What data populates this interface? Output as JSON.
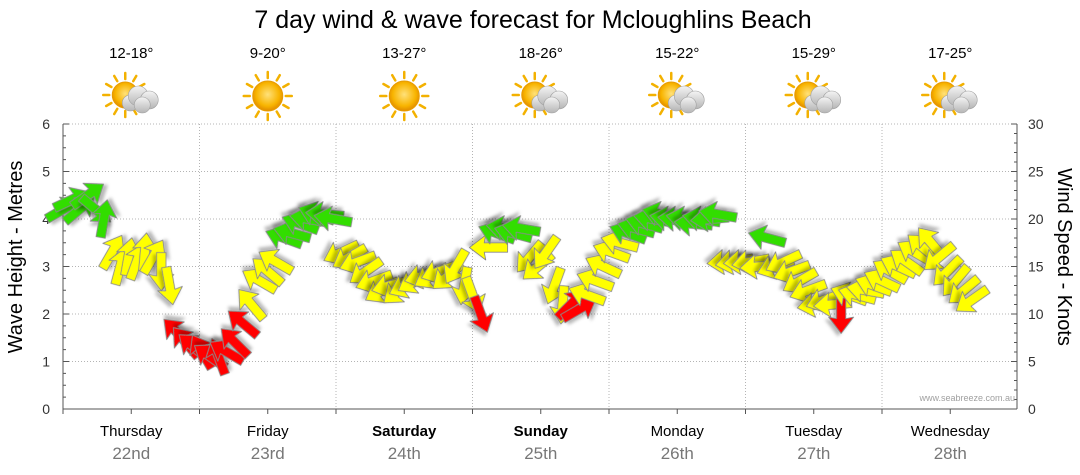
{
  "chart_data": {
    "type": "forecast-arrows",
    "title": "7 day wind & wave forecast for Mcloughlins Beach",
    "left_axis": {
      "label": "Wave Height - Metres",
      "min": 0,
      "max": 6,
      "ticks": [
        "0",
        "1",
        "2",
        "3",
        "4",
        "5",
        "6"
      ]
    },
    "right_axis": {
      "label": "Wind Speed - Knots",
      "min": 0,
      "max": 30,
      "ticks": [
        "0",
        "5",
        "10",
        "15",
        "20",
        "25",
        "30"
      ]
    },
    "days": [
      {
        "name": "Thursday",
        "date": "22nd",
        "temp": "12-18°",
        "weather": "partly-cloudy",
        "bold": false
      },
      {
        "name": "Friday",
        "date": "23rd",
        "temp": "9-20°",
        "weather": "sunny",
        "bold": false
      },
      {
        "name": "Saturday",
        "date": "24th",
        "temp": "13-27°",
        "weather": "sunny",
        "bold": true
      },
      {
        "name": "Sunday",
        "date": "25th",
        "temp": "18-26°",
        "weather": "partly-cloudy",
        "bold": true
      },
      {
        "name": "Monday",
        "date": "26th",
        "temp": "15-22°",
        "weather": "partly-cloudy",
        "bold": false
      },
      {
        "name": "Tuesday",
        "date": "27th",
        "temp": "15-29°",
        "weather": "partly-cloudy",
        "bold": false
      },
      {
        "name": "Wednesday",
        "date": "28th",
        "temp": "17-25°",
        "weather": "partly-cloudy",
        "bold": false
      }
    ],
    "grid": true,
    "colors": {
      "red": "#ff0000",
      "yellow": "#ffff00",
      "green": "#33dd00",
      "stroke": "#888888"
    },
    "wind_series": [
      {
        "day": 0.0,
        "knots": 21.0,
        "dir": -30,
        "level": "green"
      },
      {
        "day": 0.06,
        "knots": 22.0,
        "dir": -25,
        "level": "green"
      },
      {
        "day": 0.12,
        "knots": 21.0,
        "dir": -40,
        "level": "green"
      },
      {
        "day": 0.18,
        "knots": 22.5,
        "dir": -35,
        "level": "green"
      },
      {
        "day": 0.24,
        "knots": 21.0,
        "dir": 40,
        "level": "green"
      },
      {
        "day": 0.3,
        "knots": 20.0,
        "dir": -80,
        "level": "green"
      },
      {
        "day": 0.36,
        "knots": 16.5,
        "dir": -60,
        "level": "yellow"
      },
      {
        "day": 0.42,
        "knots": 15.0,
        "dir": -75,
        "level": "yellow"
      },
      {
        "day": 0.48,
        "knots": 16.0,
        "dir": -80,
        "level": "yellow"
      },
      {
        "day": 0.54,
        "knots": 15.5,
        "dir": -70,
        "level": "yellow"
      },
      {
        "day": 0.6,
        "knots": 16.5,
        "dir": -85,
        "level": "yellow"
      },
      {
        "day": 0.66,
        "knots": 16.0,
        "dir": -60,
        "level": "yellow"
      },
      {
        "day": 0.72,
        "knots": 14.5,
        "dir": 90,
        "level": "yellow"
      },
      {
        "day": 0.78,
        "knots": 13.0,
        "dir": 80,
        "level": "yellow"
      },
      {
        "day": 0.84,
        "knots": 8.0,
        "dir": -135,
        "level": "red"
      },
      {
        "day": 0.9,
        "knots": 7.0,
        "dir": -130,
        "level": "red"
      },
      {
        "day": 0.96,
        "knots": 6.5,
        "dir": -140,
        "level": "red"
      },
      {
        "day": 1.02,
        "knots": 6.0,
        "dir": -120,
        "level": "red"
      },
      {
        "day": 1.08,
        "knots": 5.5,
        "dir": -145,
        "level": "red"
      },
      {
        "day": 1.14,
        "knots": 5.5,
        "dir": -110,
        "level": "red"
      },
      {
        "day": 1.2,
        "knots": 6.0,
        "dir": -150,
        "level": "red"
      },
      {
        "day": 1.26,
        "knots": 7.0,
        "dir": -135,
        "level": "red"
      },
      {
        "day": 1.32,
        "knots": 9.0,
        "dir": -140,
        "level": "red"
      },
      {
        "day": 1.38,
        "knots": 11.0,
        "dir": -130,
        "level": "yellow"
      },
      {
        "day": 1.44,
        "knots": 13.5,
        "dir": -150,
        "level": "yellow"
      },
      {
        "day": 1.5,
        "knots": 14.5,
        "dir": -140,
        "level": "yellow"
      },
      {
        "day": 1.56,
        "knots": 15.5,
        "dir": -150,
        "level": "yellow"
      },
      {
        "day": 1.62,
        "knots": 18.0,
        "dir": -160,
        "level": "green"
      },
      {
        "day": 1.68,
        "knots": 18.5,
        "dir": -165,
        "level": "green"
      },
      {
        "day": 1.74,
        "knots": 19.5,
        "dir": -160,
        "level": "green"
      },
      {
        "day": 1.8,
        "knots": 20.0,
        "dir": -170,
        "level": "green"
      },
      {
        "day": 1.86,
        "knots": 20.5,
        "dir": -160,
        "level": "green"
      },
      {
        "day": 1.92,
        "knots": 20.5,
        "dir": -175,
        "level": "green"
      },
      {
        "day": 1.98,
        "knots": 20.0,
        "dir": -170,
        "level": "green"
      },
      {
        "day": 2.04,
        "knots": 16.5,
        "dir": 155,
        "level": "yellow"
      },
      {
        "day": 2.1,
        "knots": 16.0,
        "dir": 150,
        "level": "yellow"
      },
      {
        "day": 2.16,
        "knots": 15.5,
        "dir": 160,
        "level": "yellow"
      },
      {
        "day": 2.22,
        "knots": 14.5,
        "dir": 145,
        "level": "yellow"
      },
      {
        "day": 2.28,
        "knots": 13.5,
        "dir": 160,
        "level": "yellow"
      },
      {
        "day": 2.34,
        "knots": 12.5,
        "dir": 150,
        "level": "yellow"
      },
      {
        "day": 2.4,
        "knots": 13.0,
        "dir": 165,
        "level": "yellow"
      },
      {
        "day": 2.46,
        "knots": 12.5,
        "dir": 140,
        "level": "yellow"
      },
      {
        "day": 2.52,
        "knots": 13.0,
        "dir": 155,
        "level": "yellow"
      },
      {
        "day": 2.58,
        "knots": 13.5,
        "dir": 150,
        "level": "yellow"
      },
      {
        "day": 2.64,
        "knots": 14.0,
        "dir": 165,
        "level": "yellow"
      },
      {
        "day": 2.7,
        "knots": 14.0,
        "dir": 150,
        "level": "yellow"
      },
      {
        "day": 2.76,
        "knots": 14.5,
        "dir": 160,
        "level": "yellow"
      },
      {
        "day": 2.82,
        "knots": 14.0,
        "dir": 140,
        "level": "yellow"
      },
      {
        "day": 2.88,
        "knots": 15.0,
        "dir": 120,
        "level": "yellow"
      },
      {
        "day": 2.94,
        "knots": 13.0,
        "dir": 100,
        "level": "yellow"
      },
      {
        "day": 3.0,
        "knots": 12.0,
        "dir": 70,
        "level": "yellow"
      },
      {
        "day": 3.06,
        "knots": 10.0,
        "dir": 70,
        "level": "red"
      },
      {
        "day": 3.12,
        "knots": 17.0,
        "dir": -180,
        "level": "yellow"
      },
      {
        "day": 3.18,
        "knots": 18.5,
        "dir": -160,
        "level": "green"
      },
      {
        "day": 3.24,
        "knots": 19.0,
        "dir": -170,
        "level": "green"
      },
      {
        "day": 3.3,
        "knots": 18.5,
        "dir": -165,
        "level": "green"
      },
      {
        "day": 3.36,
        "knots": 19.0,
        "dir": -170,
        "level": "green"
      },
      {
        "day": 3.42,
        "knots": 16.0,
        "dir": 130,
        "level": "yellow"
      },
      {
        "day": 3.48,
        "knots": 15.0,
        "dir": 140,
        "level": "yellow"
      },
      {
        "day": 3.54,
        "knots": 16.5,
        "dir": 125,
        "level": "yellow"
      },
      {
        "day": 3.6,
        "knots": 13.0,
        "dir": 110,
        "level": "yellow"
      },
      {
        "day": 3.66,
        "knots": 11.0,
        "dir": 95,
        "level": "yellow"
      },
      {
        "day": 3.72,
        "knots": 11.0,
        "dir": -45,
        "level": "red"
      },
      {
        "day": 3.78,
        "knots": 10.5,
        "dir": -30,
        "level": "red"
      },
      {
        "day": 3.84,
        "knots": 12.0,
        "dir": -160,
        "level": "yellow"
      },
      {
        "day": 3.9,
        "knots": 13.5,
        "dir": -160,
        "level": "yellow"
      },
      {
        "day": 3.96,
        "knots": 15.0,
        "dir": -155,
        "level": "yellow"
      },
      {
        "day": 4.02,
        "knots": 16.5,
        "dir": -160,
        "level": "yellow"
      },
      {
        "day": 4.08,
        "knots": 17.5,
        "dir": -165,
        "level": "yellow"
      },
      {
        "day": 4.14,
        "knots": 18.5,
        "dir": -160,
        "level": "green"
      },
      {
        "day": 4.2,
        "knots": 19.0,
        "dir": -165,
        "level": "green"
      },
      {
        "day": 4.26,
        "knots": 19.5,
        "dir": -165,
        "level": "green"
      },
      {
        "day": 4.32,
        "knots": 20.0,
        "dir": -170,
        "level": "green"
      },
      {
        "day": 4.38,
        "knots": 20.5,
        "dir": -165,
        "level": "green"
      },
      {
        "day": 4.44,
        "knots": 20.0,
        "dir": -170,
        "level": "green"
      },
      {
        "day": 4.5,
        "knots": 20.0,
        "dir": -175,
        "level": "green"
      },
      {
        "day": 4.56,
        "knots": 20.0,
        "dir": -170,
        "level": "green"
      },
      {
        "day": 4.62,
        "knots": 19.5,
        "dir": -175,
        "level": "green"
      },
      {
        "day": 4.68,
        "knots": 20.0,
        "dir": -170,
        "level": "green"
      },
      {
        "day": 4.74,
        "knots": 20.0,
        "dir": 175,
        "level": "green"
      },
      {
        "day": 4.8,
        "knots": 20.5,
        "dir": -170,
        "level": "green"
      },
      {
        "day": 4.86,
        "knots": 15.5,
        "dir": 175,
        "level": "yellow"
      },
      {
        "day": 4.92,
        "knots": 15.5,
        "dir": 170,
        "level": "yellow"
      },
      {
        "day": 4.98,
        "knots": 15.5,
        "dir": 175,
        "level": "yellow"
      },
      {
        "day": 5.04,
        "knots": 15.5,
        "dir": 170,
        "level": "yellow"
      },
      {
        "day": 5.1,
        "knots": 15.0,
        "dir": 175,
        "level": "yellow"
      },
      {
        "day": 5.16,
        "knots": 18.0,
        "dir": -165,
        "level": "green"
      },
      {
        "day": 5.22,
        "knots": 15.0,
        "dir": 160,
        "level": "yellow"
      },
      {
        "day": 5.28,
        "knots": 15.5,
        "dir": 155,
        "level": "yellow"
      },
      {
        "day": 5.34,
        "knots": 14.5,
        "dir": 160,
        "level": "yellow"
      },
      {
        "day": 5.4,
        "knots": 13.5,
        "dir": 150,
        "level": "yellow"
      },
      {
        "day": 5.46,
        "knots": 12.5,
        "dir": 160,
        "level": "yellow"
      },
      {
        "day": 5.52,
        "knots": 11.0,
        "dir": 170,
        "level": "yellow"
      },
      {
        "day": 5.58,
        "knots": 11.5,
        "dir": 160,
        "level": "yellow"
      },
      {
        "day": 5.64,
        "knots": 11.0,
        "dir": 175,
        "level": "yellow"
      },
      {
        "day": 5.7,
        "knots": 10.0,
        "dir": 90,
        "level": "red"
      },
      {
        "day": 5.76,
        "knots": 12.0,
        "dir": -160,
        "level": "yellow"
      },
      {
        "day": 5.82,
        "knots": 12.0,
        "dir": -165,
        "level": "yellow"
      },
      {
        "day": 5.88,
        "knots": 12.5,
        "dir": -170,
        "level": "yellow"
      },
      {
        "day": 5.94,
        "knots": 13.0,
        "dir": -160,
        "level": "yellow"
      },
      {
        "day": 6.0,
        "knots": 13.5,
        "dir": -155,
        "level": "yellow"
      },
      {
        "day": 6.06,
        "knots": 14.5,
        "dir": -150,
        "level": "yellow"
      },
      {
        "day": 6.12,
        "knots": 15.0,
        "dir": -155,
        "level": "yellow"
      },
      {
        "day": 6.18,
        "knots": 15.5,
        "dir": -145,
        "level": "yellow"
      },
      {
        "day": 6.24,
        "knots": 16.5,
        "dir": -150,
        "level": "yellow"
      },
      {
        "day": 6.3,
        "knots": 17.0,
        "dir": -140,
        "level": "yellow"
      },
      {
        "day": 6.36,
        "knots": 17.5,
        "dir": -130,
        "level": "yellow"
      },
      {
        "day": 6.42,
        "knots": 16.0,
        "dir": 140,
        "level": "yellow"
      },
      {
        "day": 6.48,
        "knots": 14.5,
        "dir": 135,
        "level": "yellow"
      },
      {
        "day": 6.54,
        "knots": 13.5,
        "dir": 130,
        "level": "yellow"
      },
      {
        "day": 6.6,
        "knots": 12.5,
        "dir": 140,
        "level": "yellow"
      },
      {
        "day": 6.66,
        "knots": 11.5,
        "dir": 145,
        "level": "yellow"
      }
    ]
  },
  "watermark": "www.seabreeze.com.au"
}
